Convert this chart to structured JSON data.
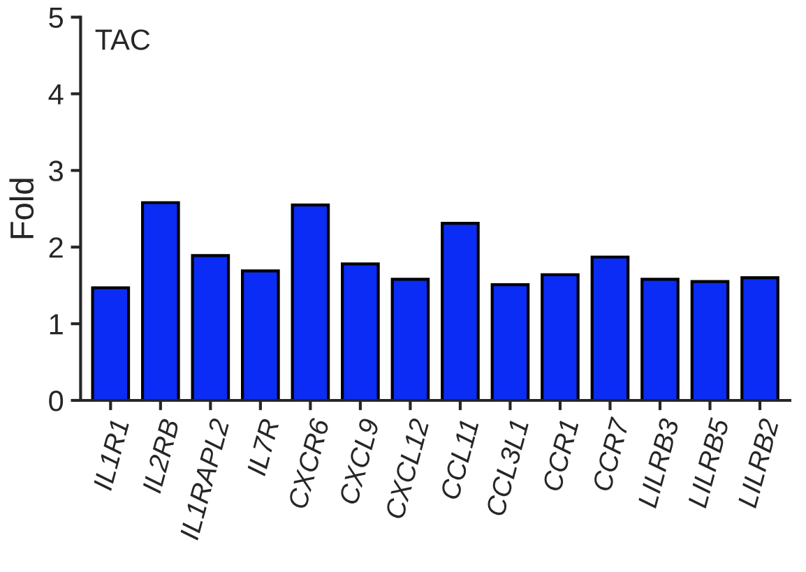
{
  "chart_data": {
    "type": "bar",
    "ylabel": "Fold",
    "annotations": [
      "TAC"
    ],
    "categories": [
      "IL1R1",
      "IL2RB",
      "IL1RAPL2",
      "IL7R",
      "CXCR6",
      "CXCL9",
      "CXCL12",
      "CCL11",
      "CCL3L1",
      "CCR1",
      "CCR7",
      "LILRB3",
      "LILRB5",
      "LILRB2"
    ],
    "values": [
      1.47,
      2.58,
      1.89,
      1.69,
      2.55,
      1.78,
      1.58,
      2.31,
      1.51,
      1.64,
      1.87,
      1.58,
      1.55,
      1.6
    ],
    "color": "#0a2cf5",
    "ylim": [
      0,
      5
    ],
    "yticks": [
      0,
      1,
      2,
      3,
      4,
      5
    ],
    "grid": false,
    "legend": false
  }
}
